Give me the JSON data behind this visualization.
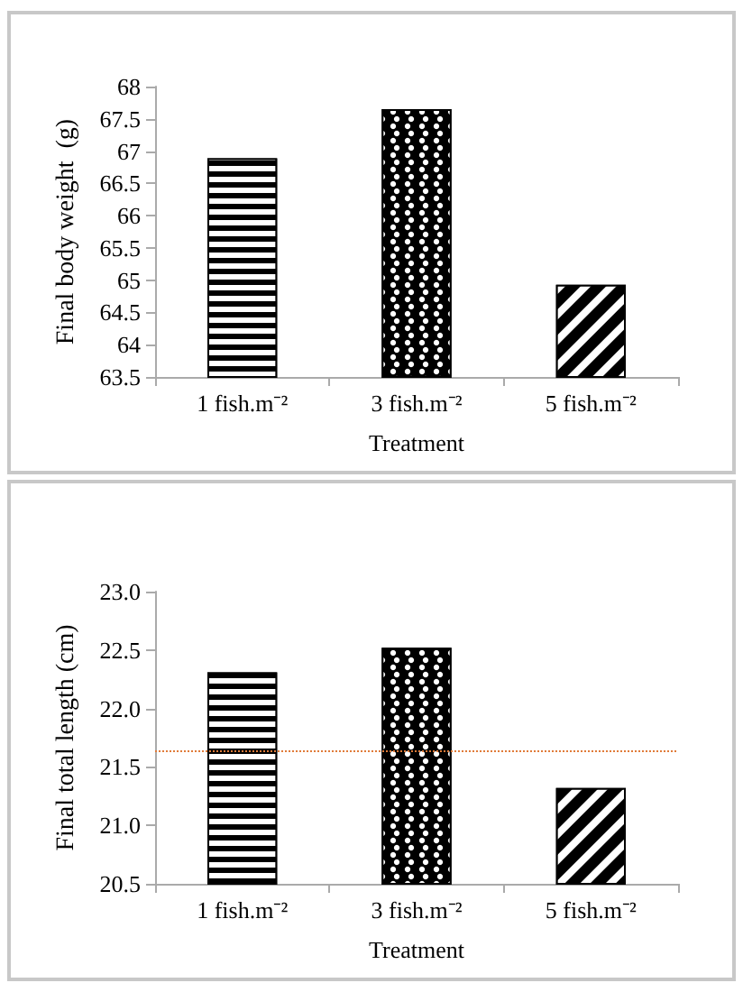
{
  "chart_data": [
    {
      "type": "bar",
      "categories": [
        "1 fish.m⁻²",
        "3 fish.m⁻²",
        "5 fish.m⁻²"
      ],
      "values": [
        66.89,
        67.65,
        64.93
      ],
      "colors": [
        "#000000",
        "#000000",
        "#000000"
      ],
      "xlabel": "Treatment",
      "ylabel": "Final body weight  (g)",
      "ylim": [
        63.5,
        68
      ],
      "yticks": [
        63.5,
        64,
        64.5,
        65,
        65.5,
        66,
        66.5,
        67,
        67.5,
        68
      ],
      "grid": false
    },
    {
      "type": "bar",
      "categories": [
        "1 fish.m⁻²",
        "3 fish.m⁻²",
        "5 fish.m⁻²"
      ],
      "values": [
        22.31,
        22.52,
        21.32
      ],
      "colors": [
        "#000000",
        "#000000",
        "#000000"
      ],
      "xlabel": "Treatment",
      "ylabel": "Final total length (cm)",
      "ylim": [
        20.5,
        23
      ],
      "yticks": [
        {
          "value": 20.5,
          "label": "20.5"
        },
        {
          "value": 21,
          "label": "21.0"
        },
        {
          "value": 21.5,
          "label": "21.5"
        },
        {
          "value": 22,
          "label": "22.0"
        },
        {
          "value": 22.5,
          "label": "22.5"
        },
        {
          "value": 23,
          "label": "23.0"
        }
      ],
      "grid": false,
      "ref_lines": [
        {
          "axis": "y",
          "value": 21.64,
          "color": "#e07b39",
          "line_style": "dotted"
        }
      ]
    }
  ]
}
